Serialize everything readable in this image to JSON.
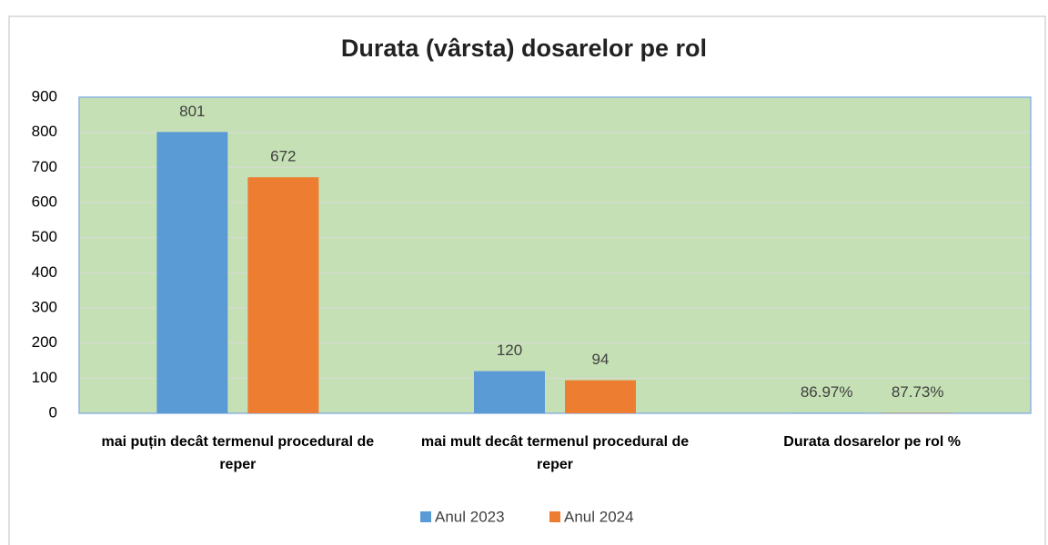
{
  "chart_data": {
    "type": "bar",
    "title": "Durata (vârsta) dosarelor pe rol",
    "categories": [
      "mai puțin decât termenul procedural de reper",
      "mai mult decât termenul procedural de reper",
      "Durata dosarelor pe rol %"
    ],
    "series": [
      {
        "name": "Anul 2023",
        "color": "#5b9bd5",
        "values": [
          801,
          120,
          0.8697
        ],
        "value_labels": [
          "801",
          "120",
          "86.97%"
        ]
      },
      {
        "name": "Anul 2024",
        "color": "#ed7d31",
        "values": [
          672,
          94,
          0.8773
        ],
        "value_labels": [
          "672",
          "94",
          "87.73%"
        ]
      }
    ],
    "ylim": [
      0,
      900
    ],
    "yticks": [
      0,
      100,
      200,
      300,
      400,
      500,
      600,
      700,
      800,
      900
    ],
    "grid": true,
    "legend": "bottom"
  }
}
